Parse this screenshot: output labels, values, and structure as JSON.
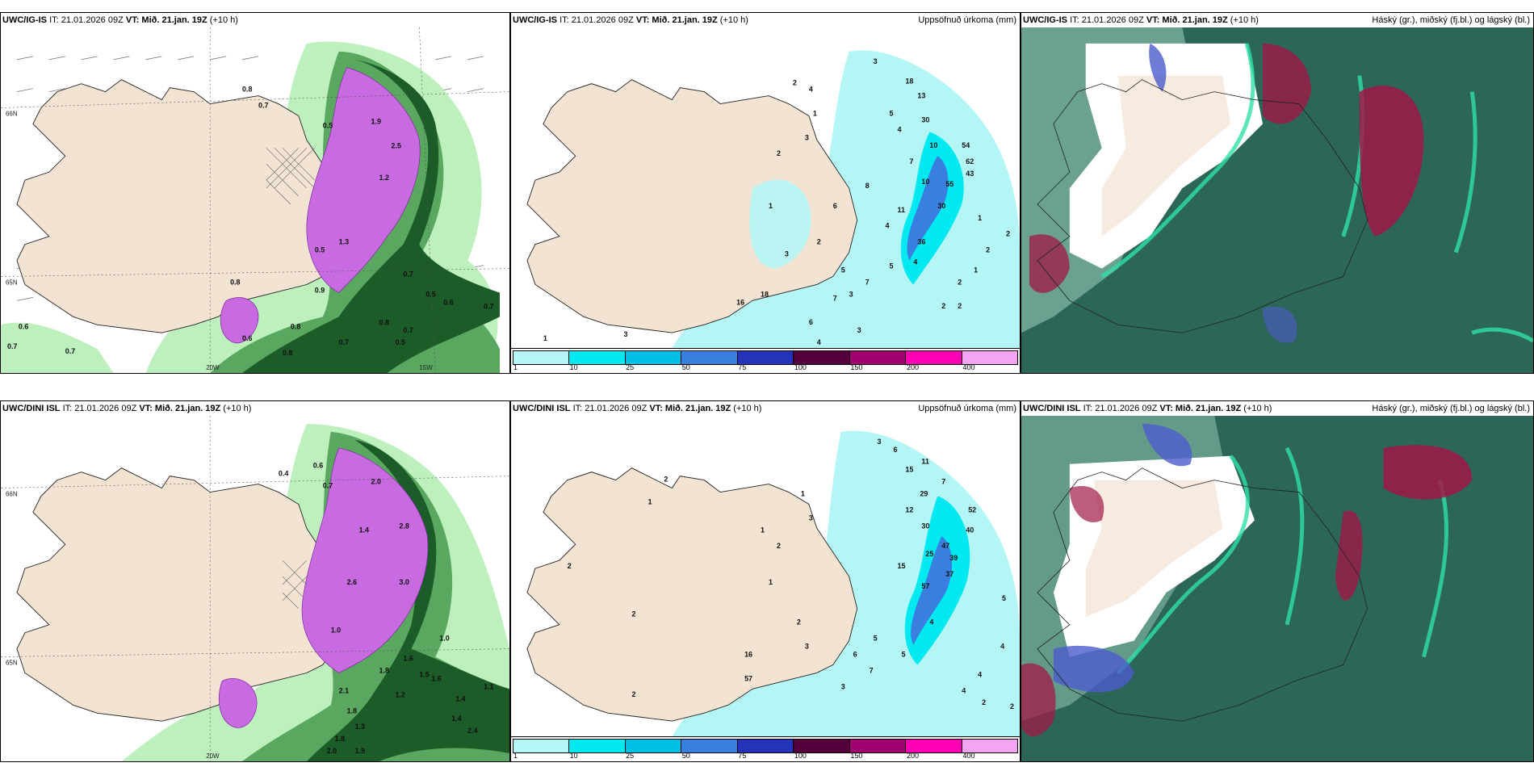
{
  "panels": [
    {
      "id": "top-left",
      "model": "UWC/IG-IS",
      "it": "IT: 21.01.2026 09Z",
      "vt_label": "VT:",
      "vt": "Mið. 21.jan. 19Z",
      "lead": "(+10 h)",
      "right": "",
      "lat_labels": [
        "66N",
        "65N"
      ],
      "lon_labels": [
        "20W",
        "15W"
      ],
      "value_labels": [
        "0.8",
        "0.7",
        "0.5",
        "1.9",
        "1.2",
        "2.5",
        "0.5",
        "1.3",
        "0.8",
        "0.9",
        "0.7",
        "0.6",
        "0.7",
        "0.5",
        "0.6",
        "0.7",
        "0.8",
        "0.7",
        "0.5",
        "0.8",
        "0.7",
        "0.6",
        "0.7",
        "0.8"
      ]
    },
    {
      "id": "top-middle",
      "model": "UWC/IG-IS",
      "it": "IT: 21.01.2026 09Z",
      "vt_label": "VT:",
      "vt": "Mið. 21.jan. 19Z",
      "lead": "(+10 h)",
      "right": "Uppsöfnuð úrkoma (mm)",
      "value_labels": [
        "1",
        "3",
        "2",
        "4",
        "1",
        "3",
        "2",
        "3",
        "18",
        "13",
        "5",
        "4",
        "30",
        "10",
        "54",
        "62",
        "7",
        "43",
        "55",
        "10",
        "30",
        "11",
        "8",
        "36",
        "6",
        "3",
        "2",
        "1",
        "2",
        "5",
        "4",
        "7",
        "2",
        "2",
        "3",
        "18",
        "16",
        "6",
        "1",
        "2",
        "3",
        "4",
        "4",
        "1",
        "5",
        "7",
        "2"
      ]
    },
    {
      "id": "top-right",
      "model": "UWC/IG-IS",
      "it": "IT: 21.01.2026 09Z",
      "vt_label": "VT:",
      "vt": "Mið. 21.jan. 19Z",
      "lead": "(+10 h)",
      "right": "Háský (gr.), miðský (fj.bl.) og lágský (bl.)"
    },
    {
      "id": "bottom-left",
      "model": "UWC/DINI ISL",
      "it": "IT: 21.01.2026 09Z",
      "vt_label": "VT:",
      "vt": "Mið. 21.jan. 19Z",
      "lead": "(+10 h)",
      "right": "",
      "lat_labels": [
        "66N",
        "65N"
      ],
      "lon_labels": [
        "20W"
      ],
      "value_labels": [
        "0.6",
        "0.4",
        "0.7",
        "2.0",
        "1.4",
        "2.8",
        "1.0",
        "2.6",
        "3.0",
        "1.0",
        "1.6",
        "1.8",
        "1.5",
        "1.4",
        "2.1",
        "1.8",
        "1.3",
        "1.8",
        "2.0",
        "1.9",
        "1.4",
        "2.4",
        "1.1",
        "1.2",
        "1.6"
      ]
    },
    {
      "id": "bottom-middle",
      "model": "UWC/DINI ISL",
      "it": "IT: 21.01.2026 09Z",
      "vt_label": "VT:",
      "vt": "Mið. 21.jan. 19Z",
      "lead": "(+10 h)",
      "right": "Uppsöfnuð úrkoma (mm)",
      "value_labels": [
        "2",
        "1",
        "2",
        "3",
        "6",
        "1",
        "3",
        "11",
        "7",
        "15",
        "29",
        "52",
        "12",
        "40",
        "30",
        "47",
        "25",
        "39",
        "1",
        "2",
        "15",
        "37",
        "57",
        "1",
        "5",
        "2",
        "2",
        "3",
        "4",
        "5",
        "16",
        "57",
        "6",
        "7",
        "3",
        "2",
        "4",
        "4",
        "2",
        "5",
        "4",
        "2"
      ]
    },
    {
      "id": "bottom-right",
      "model": "UWC/DINI ISL",
      "it": "IT: 21.01.2026 09Z",
      "vt_label": "VT:",
      "vt": "Mið. 21.jan. 19Z",
      "lead": "(+10 h)",
      "right": "Háský (gr.), miðský (fj.bl.) og lágský (bl.)"
    }
  ],
  "precip_legend": {
    "labels": [
      "1",
      "10",
      "25",
      "50",
      "75",
      "100",
      "150",
      "200",
      "400"
    ],
    "colors": [
      "#b6f5f5",
      "#00e8f0",
      "#00bfe6",
      "#3a7fe0",
      "#2533b8",
      "#55003c",
      "#a0006e",
      "#ff00b4",
      "#f4a4f0"
    ]
  },
  "colors": {
    "land": "#f3e3d3",
    "sea": "#ffffff",
    "precip_light": "#b4f6f6",
    "snow_light": "#bdf0bd",
    "snow_mid": "#5aa860",
    "snow_dark": "#1c5c28",
    "convective": "#c86be0",
    "cloud_high": "#2c6658",
    "cloud_mid": "#7ab0a0",
    "cloud_red": "#a01846",
    "cloud_blue": "#4c5ccc"
  }
}
